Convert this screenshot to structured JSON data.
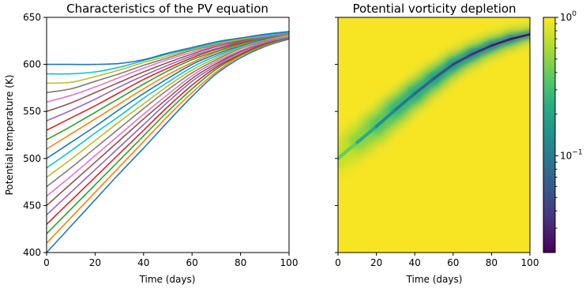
{
  "chart_data": [
    {
      "type": "line",
      "title": "Characteristics of the PV equation",
      "xlabel": "Time (days)",
      "ylabel": "Potential temperature (K)",
      "xlim": [
        0,
        100
      ],
      "ylim": [
        400,
        650
      ],
      "xticks": [
        "0",
        "20",
        "40",
        "60",
        "80",
        "100"
      ],
      "yticks": [
        "400",
        "450",
        "500",
        "550",
        "600",
        "650"
      ],
      "grid": false,
      "x": [
        0,
        10,
        20,
        30,
        40,
        50,
        60,
        70,
        80,
        90,
        100
      ],
      "series": [
        {
          "values": [
            400,
            428,
            456,
            484,
            511,
            539,
            566,
            590,
            607,
            619,
            627
          ],
          "color": "#1f77b4"
        },
        {
          "values": [
            410,
            437,
            464,
            491,
            518,
            545,
            570,
            592,
            609,
            620,
            628
          ],
          "color": "#ff7f0e"
        },
        {
          "values": [
            420,
            446,
            472,
            498,
            524,
            550,
            574,
            595,
            610,
            621,
            628
          ],
          "color": "#2ca02c"
        },
        {
          "values": [
            430,
            455,
            480,
            505,
            530,
            555,
            578,
            597,
            611,
            622,
            629
          ],
          "color": "#d62728"
        },
        {
          "values": [
            440,
            464,
            488,
            512,
            536,
            560,
            582,
            599,
            613,
            623,
            629
          ],
          "color": "#9467bd"
        },
        {
          "values": [
            450,
            473,
            496,
            519,
            542,
            564,
            585,
            601,
            614,
            624,
            630
          ],
          "color": "#8c564b"
        },
        {
          "values": [
            460,
            481,
            503,
            525,
            547,
            568,
            588,
            603,
            615,
            624,
            630
          ],
          "color": "#e377c2"
        },
        {
          "values": [
            470,
            490,
            511,
            532,
            553,
            573,
            591,
            605,
            617,
            625,
            631
          ],
          "color": "#7f7f7f"
        },
        {
          "values": [
            480,
            499,
            519,
            539,
            558,
            577,
            594,
            607,
            618,
            626,
            631
          ],
          "color": "#bcbd22"
        },
        {
          "values": [
            490,
            508,
            527,
            545,
            564,
            581,
            597,
            609,
            619,
            627,
            632
          ],
          "color": "#17becf"
        },
        {
          "values": [
            500,
            517,
            534,
            552,
            569,
            585,
            600,
            611,
            620,
            627,
            632
          ],
          "color": "#1f77b4"
        },
        {
          "values": [
            510,
            526,
            542,
            558,
            574,
            589,
            602,
            613,
            621,
            628,
            632
          ],
          "color": "#ff7f0e"
        },
        {
          "values": [
            520,
            534,
            549,
            564,
            579,
            593,
            605,
            614,
            622,
            628,
            633
          ],
          "color": "#2ca02c"
        },
        {
          "values": [
            530,
            543,
            556,
            570,
            584,
            596,
            607,
            616,
            623,
            629,
            633
          ],
          "color": "#d62728"
        },
        {
          "values": [
            540,
            551,
            563,
            576,
            588,
            599,
            609,
            617,
            624,
            629,
            633
          ],
          "color": "#9467bd"
        },
        {
          "values": [
            550,
            559,
            570,
            581,
            592,
            602,
            611,
            619,
            625,
            630,
            634
          ],
          "color": "#8c564b"
        },
        {
          "values": [
            560,
            567,
            576,
            586,
            596,
            605,
            613,
            620,
            626,
            630,
            634
          ],
          "color": "#e377c2"
        },
        {
          "values": [
            570,
            574,
            582,
            590,
            599,
            607,
            615,
            621,
            626,
            631,
            634
          ],
          "color": "#7f7f7f"
        },
        {
          "values": [
            580,
            581,
            587,
            594,
            602,
            609,
            616,
            622,
            627,
            631,
            634
          ],
          "color": "#bcbd22"
        },
        {
          "values": [
            590,
            590,
            592,
            597,
            604,
            611,
            617,
            623,
            628,
            631,
            634
          ],
          "color": "#17becf"
        },
        {
          "values": [
            600,
            600,
            600,
            601,
            605,
            612,
            618,
            624,
            628,
            632,
            635
          ],
          "color": "#1f77b4"
        }
      ]
    },
    {
      "type": "heatmap",
      "title": "Potential vorticity depletion",
      "xlabel": "Time (days)",
      "xlim": [
        0,
        100
      ],
      "ylim": [
        400,
        650
      ],
      "xticks": [
        "0",
        "20",
        "40",
        "60",
        "80",
        "100"
      ],
      "colormap": "viridis",
      "colorscale": "log",
      "clim": [
        0.02,
        1
      ],
      "colorbar_ticks": [
        {
          "base": "10",
          "exp": "0"
        },
        {
          "base": "10",
          "exp": "−1"
        }
      ],
      "ridge": {
        "x": [
          0,
          10,
          20,
          30,
          40,
          50,
          60,
          70,
          80,
          90,
          100
        ],
        "theta": [
          500,
          517,
          534,
          552,
          569,
          585,
          600,
          611,
          620,
          627,
          632
        ],
        "min_value": [
          0.55,
          0.3,
          0.17,
          0.11,
          0.08,
          0.06,
          0.045,
          0.035,
          0.028,
          0.024,
          0.02
        ]
      }
    }
  ]
}
